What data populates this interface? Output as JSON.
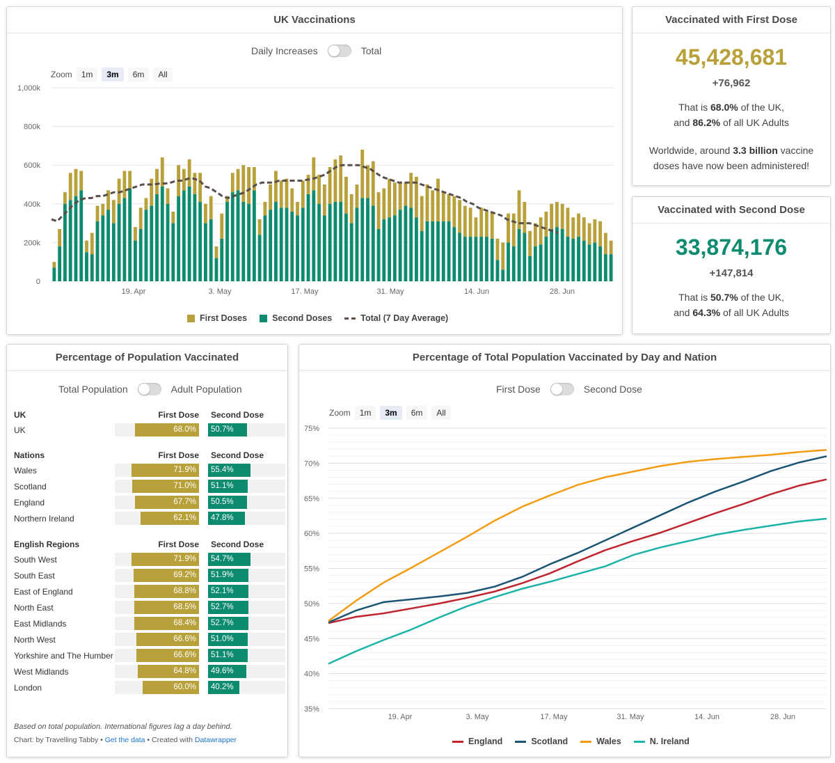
{
  "panel1": {
    "title": "UK Vaccinations",
    "toggle_left": "Daily Increases",
    "toggle_right": "Total",
    "zoom_label": "Zoom",
    "zoom_buttons": [
      "1m",
      "3m",
      "6m",
      "All"
    ],
    "zoom_active": "3m",
    "legend": [
      "First Doses",
      "Second Doses",
      "Total (7 Day Average)"
    ]
  },
  "panel2": {
    "title": "Vaccinated with First Dose",
    "number": "45,428,681",
    "delta": "+76,962",
    "line1_pre": "That is ",
    "line1_b": "68.0%",
    "line1_post": " of the UK,",
    "line2_pre": "and ",
    "line2_b": "86.2%",
    "line2_post": " of all UK Adults",
    "line3_pre": "Worldwide, around ",
    "line3_b": "3.3 billion",
    "line3_post": " vaccine",
    "line4": "doses have now been administered!"
  },
  "panel3": {
    "title": "Vaccinated with Second Dose",
    "number": "33,874,176",
    "delta": "+147,814",
    "line1_pre": "That is ",
    "line1_b": "50.7%",
    "line1_post": " of the UK,",
    "line2_pre": "and ",
    "line2_b": "64.3%",
    "line2_post": " of all UK Adults"
  },
  "panel4": {
    "title": "Percentage of Population Vaccinated",
    "toggle_left": "Total Population",
    "toggle_right": "Adult Population",
    "first_header": "First Dose",
    "second_header": "Second Dose",
    "groups": [
      {
        "name": "UK",
        "rows": [
          {
            "name": "UK",
            "first": "68.0%",
            "second": "50.7%",
            "fv": 68.0,
            "sv": 50.7
          }
        ]
      },
      {
        "name": "Nations",
        "rows": [
          {
            "name": "Wales",
            "first": "71.9%",
            "second": "55.4%",
            "fv": 71.9,
            "sv": 55.4
          },
          {
            "name": "Scotland",
            "first": "71.0%",
            "second": "51.1%",
            "fv": 71.0,
            "sv": 51.1
          },
          {
            "name": "England",
            "first": "67.7%",
            "second": "50.5%",
            "fv": 67.7,
            "sv": 50.5
          },
          {
            "name": "Northern Ireland",
            "first": "62.1%",
            "second": "47.8%",
            "fv": 62.1,
            "sv": 47.8
          }
        ]
      },
      {
        "name": "English Regions",
        "rows": [
          {
            "name": "South West",
            "first": "71.9%",
            "second": "54.7%",
            "fv": 71.9,
            "sv": 54.7
          },
          {
            "name": "South East",
            "first": "69.2%",
            "second": "51.9%",
            "fv": 69.2,
            "sv": 51.9
          },
          {
            "name": "East of England",
            "first": "68.8%",
            "second": "52.1%",
            "fv": 68.8,
            "sv": 52.1
          },
          {
            "name": "North East",
            "first": "68.5%",
            "second": "52.7%",
            "fv": 68.5,
            "sv": 52.7
          },
          {
            "name": "East Midlands",
            "first": "68.4%",
            "second": "52.7%",
            "fv": 68.4,
            "sv": 52.7
          },
          {
            "name": "North West",
            "first": "66.6%",
            "second": "51.0%",
            "fv": 66.6,
            "sv": 51.0
          },
          {
            "name": "Yorkshire and The Humber",
            "first": "66.6%",
            "second": "51.1%",
            "fv": 66.6,
            "sv": 51.1
          },
          {
            "name": "West Midlands",
            "first": "64.8%",
            "second": "49.6%",
            "fv": 64.8,
            "sv": 49.6
          },
          {
            "name": "London",
            "first": "60.0%",
            "second": "40.2%",
            "fv": 60.0,
            "sv": 40.2
          }
        ]
      }
    ],
    "footnote": "Based on total population. International figures lag a day behind.",
    "credit_pre": "Chart: by Travelling Tabby • ",
    "credit_link1": "Get the data",
    "credit_mid": " • Created with ",
    "credit_link2": "Datawrapper"
  },
  "panel5": {
    "title": "Percentage of Total Population Vaccinated by Day and Nation",
    "toggle_left": "First Dose",
    "toggle_right": "Second Dose",
    "zoom_label": "Zoom",
    "zoom_buttons": [
      "1m",
      "3m",
      "6m",
      "All"
    ],
    "zoom_active": "3m"
  },
  "colors": {
    "first": "#b8a03a",
    "second": "#0c8b6f",
    "avg": "#5a4e4b",
    "england": "#c0242e",
    "scotland": "#1b5573",
    "wales": "#f39c12",
    "nireland": "#1bb3a6"
  },
  "chart_data": [
    {
      "type": "bar",
      "title": "UK Vaccinations",
      "stacked": true,
      "x_ticks": [
        "19. Apr",
        "3. May",
        "17. May",
        "31. May",
        "14. Jun",
        "28. Jun"
      ],
      "y_ticks": [
        "0",
        "200k",
        "400k",
        "600k",
        "800k",
        "1,000k"
      ],
      "ylim": [
        0,
        1000000
      ],
      "series": [
        {
          "name": "First Doses",
          "values": [
            30,
            90,
            60,
            140,
            140,
            100,
            60,
            110,
            80,
            60,
            100,
            120,
            130,
            140,
            90,
            70,
            110,
            60,
            140,
            130,
            150,
            80,
            60,
            160,
            110,
            140,
            110,
            150,
            100,
            120,
            60,
            130,
            30,
            100,
            110,
            190,
            190,
            120,
            80,
            70,
            130,
            160,
            140,
            150,
            120,
            70,
            140,
            100,
            170,
            150,
            160,
            190,
            220,
            240,
            190,
            150,
            120,
            250,
            170,
            230,
            190,
            160,
            200,
            170,
            140,
            120,
            180,
            210,
            180,
            190,
            160,
            220,
            150,
            140,
            160,
            170,
            160,
            150,
            100,
            150,
            130,
            140,
            110,
            140,
            150,
            170,
            200,
            160,
            130,
            120,
            140,
            130,
            130,
            130,
            130,
            150,
            110,
            120,
            120,
            110,
            120,
            130,
            110,
            70
          ]
        },
        {
          "name": "Second Doses",
          "values": [
            70,
            180,
            400,
            420,
            440,
            470,
            150,
            140,
            310,
            340,
            370,
            300,
            400,
            430,
            480,
            210,
            270,
            370,
            390,
            450,
            490,
            400,
            300,
            440,
            470,
            490,
            450,
            410,
            300,
            320,
            120,
            220,
            410,
            460,
            470,
            410,
            400,
            470,
            240,
            340,
            370,
            410,
            380,
            380,
            360,
            340,
            380,
            450,
            470,
            400,
            340,
            400,
            410,
            410,
            350,
            300,
            380,
            430,
            430,
            390,
            270,
            320,
            330,
            340,
            370,
            390,
            380,
            330,
            260,
            310,
            310,
            310,
            310,
            310,
            280,
            250,
            230,
            230,
            230,
            230,
            230,
            220,
            110,
            60,
            200,
            180,
            270,
            250,
            130,
            180,
            190,
            230,
            270,
            280,
            270,
            230,
            220,
            230,
            210,
            190,
            200,
            180,
            140,
            140
          ]
        },
        {
          "name": "Total (7 Day Average)",
          "values": [
            320,
            310,
            340,
            370,
            400,
            420,
            430,
            430,
            440,
            440,
            450,
            460,
            460,
            470,
            480,
            490,
            500,
            500,
            500,
            505,
            505,
            510,
            520,
            520,
            530,
            530,
            520,
            490,
            480,
            460,
            440,
            430,
            440,
            450,
            460,
            480,
            500,
            510,
            510,
            510,
            520,
            520,
            520,
            520,
            520,
            525,
            530,
            540,
            550,
            570,
            590,
            600,
            600,
            600,
            600,
            590,
            580,
            560,
            540,
            530,
            520,
            510,
            510,
            510,
            510,
            500,
            490,
            480,
            470,
            460,
            450,
            440,
            430,
            410,
            400,
            380,
            370,
            360,
            350,
            340,
            320,
            310,
            300,
            300,
            300,
            290,
            280,
            270,
            260,
            250
          ]
        }
      ],
      "legend_position": "bottom"
    },
    {
      "type": "line",
      "title": "Percentage of Total Population Vaccinated by Day and Nation",
      "x_ticks": [
        "19. Apr",
        "3. May",
        "17. May",
        "31. May",
        "14. Jun",
        "28. Jun"
      ],
      "y_ticks": [
        "35%",
        "40%",
        "45%",
        "50%",
        "55%",
        "60%",
        "65%",
        "70%",
        "75%"
      ],
      "ylim": [
        35,
        75
      ],
      "x_range_days": [
        0,
        90
      ],
      "series": [
        {
          "name": "England",
          "x": [
            0,
            5,
            10,
            15,
            20,
            25,
            30,
            35,
            40,
            45,
            50,
            55,
            60,
            65,
            70,
            75,
            80,
            85,
            90
          ],
          "values": [
            47.2,
            48.1,
            48.6,
            49.3,
            50.0,
            50.8,
            51.7,
            52.9,
            54.3,
            56.0,
            57.6,
            58.9,
            60.1,
            61.5,
            62.9,
            64.2,
            65.6,
            66.8,
            67.7
          ]
        },
        {
          "name": "Scotland",
          "x": [
            0,
            5,
            10,
            15,
            20,
            25,
            30,
            35,
            40,
            45,
            50,
            55,
            60,
            65,
            70,
            75,
            80,
            85,
            90
          ],
          "values": [
            47.3,
            49.0,
            50.2,
            50.6,
            51.0,
            51.5,
            52.4,
            53.8,
            55.6,
            57.2,
            59.0,
            60.8,
            62.6,
            64.4,
            66.0,
            67.4,
            68.9,
            70.1,
            71.0
          ]
        },
        {
          "name": "Wales",
          "x": [
            0,
            5,
            10,
            15,
            20,
            25,
            30,
            35,
            40,
            45,
            50,
            55,
            60,
            65,
            70,
            75,
            80,
            85,
            90
          ],
          "values": [
            47.5,
            50.4,
            53.0,
            55.1,
            57.3,
            59.5,
            61.8,
            63.8,
            65.4,
            66.9,
            68.0,
            68.8,
            69.6,
            70.2,
            70.6,
            70.9,
            71.2,
            71.6,
            71.9
          ]
        },
        {
          "name": "N. Ireland",
          "x": [
            0,
            5,
            10,
            15,
            20,
            25,
            30,
            35,
            40,
            45,
            50,
            55,
            60,
            65,
            70,
            75,
            80,
            85,
            90
          ],
          "values": [
            41.4,
            43.2,
            44.8,
            46.3,
            48.0,
            49.6,
            50.9,
            52.1,
            53.1,
            54.2,
            55.3,
            56.9,
            58.0,
            58.9,
            59.8,
            60.5,
            61.1,
            61.7,
            62.1
          ]
        }
      ],
      "legend_position": "bottom"
    }
  ]
}
